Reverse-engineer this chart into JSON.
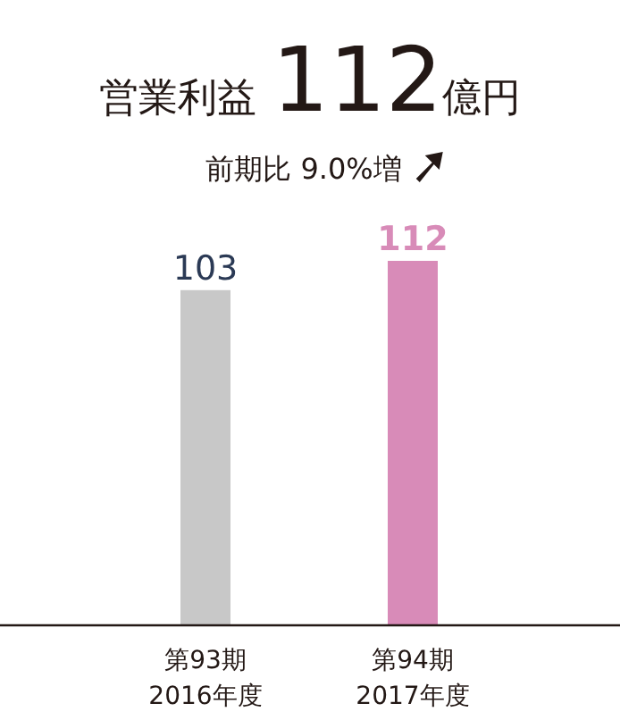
{
  "chart_data": {
    "type": "bar",
    "title": "営業利益 112億円",
    "subtitle": "前期比 9.0%増",
    "categories": [
      "第93期\n2016年度",
      "第94期\n2017年度"
    ],
    "values": [
      103,
      112
    ],
    "colors": [
      "#c8c8c8",
      "#d88bb8"
    ],
    "data_labels": true
  }
}
